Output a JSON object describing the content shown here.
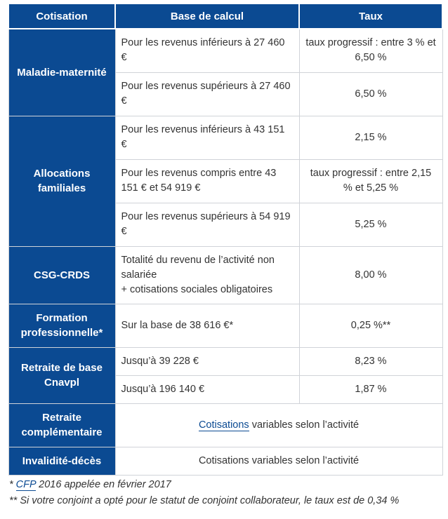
{
  "table": {
    "headers": [
      "Cotisation",
      "Base de calcul",
      "Taux"
    ],
    "maladie": {
      "category": "Maladie-maternité",
      "rows": [
        {
          "base": "Pour les revenus inférieurs à 27 460 €",
          "taux": "taux progressif : entre 3 % et 6,50 %"
        },
        {
          "base": "Pour les revenus supérieurs à 27 460 €",
          "taux": "6,50 %"
        }
      ]
    },
    "allocations": {
      "category": "Allocations familiales",
      "rows": [
        {
          "base": "Pour les revenus inférieurs à 43 151 €",
          "taux": "2,15 %"
        },
        {
          "base": "Pour les revenus compris entre 43 151 € et 54 919 €",
          "taux": "taux progressif : entre 2,15 % et 5,25 %"
        },
        {
          "base": "Pour les revenus supérieurs à 54 919 €",
          "taux": "5,25 %"
        }
      ]
    },
    "csg": {
      "category": "CSG-CRDS",
      "base_line1": "Totalité du revenu de l’activité non salariée",
      "base_line2": "+ cotisations sociales obligatoires",
      "taux": "8,00 %"
    },
    "formation": {
      "category": "Formation professionnelle*",
      "base": "Sur la base de 38 616 €*",
      "taux": "0,25 %**"
    },
    "retraite_base": {
      "category": "Retraite de base Cnavpl",
      "rows": [
        {
          "base": "Jusqu’à 39 228 €",
          "taux": "8,23 %"
        },
        {
          "base": "Jusqu’à 196 140 €",
          "taux": "1,87 %"
        }
      ]
    },
    "retraite_comp": {
      "category": "Retraite complémentaire",
      "link": "Cotisations",
      "rest": " variables selon l’activité"
    },
    "invalidite": {
      "category": "Invalidité-décès",
      "text": "Cotisations variables selon l’activité"
    }
  },
  "footnotes": {
    "note1_prefix": "* ",
    "note1_link": "CFP",
    "note1_rest": " 2016 appelée en février 2017",
    "note2": "** Si votre conjoint a opté pour le statut de conjoint collaborateur, le taux est de 0,34 %"
  },
  "colors": {
    "header_bg": "#0b4a92",
    "border": "#d0d3d8",
    "link": "#0b4a92"
  }
}
